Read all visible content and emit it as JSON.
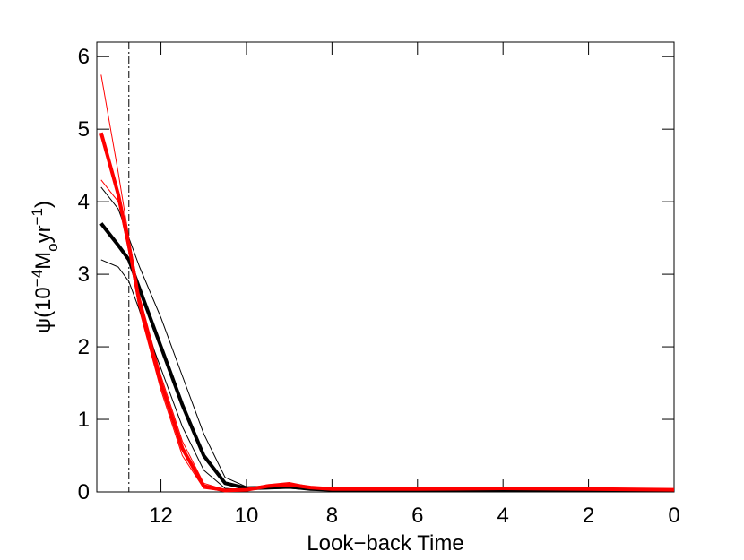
{
  "chart_data": {
    "type": "line",
    "xlabel": "Look−back Time",
    "ylabel": [
      "ψ(10",
      "−4",
      "M",
      "o",
      "yr",
      "−1",
      ")"
    ],
    "x": [
      13.4,
      13.0,
      12.75,
      12.5,
      12.0,
      11.5,
      11.0,
      10.5,
      10.0,
      9.5,
      9.0,
      8.5,
      8.0,
      6.0,
      4.0,
      2.0,
      0.0
    ],
    "series": [
      {
        "color": "#ff0000",
        "width": 1,
        "values": [
          5.75,
          4.4,
          3.5,
          2.7,
          1.6,
          0.7,
          0.12,
          0.03,
          0.04,
          0.1,
          0.13,
          0.07,
          0.05,
          0.05,
          0.06,
          0.05,
          0.04
        ]
      },
      {
        "color": "#ff0000",
        "width": 1,
        "values": [
          4.3,
          4.0,
          3.3,
          2.5,
          1.4,
          0.5,
          0.05,
          0.01,
          0.02,
          0.06,
          0.08,
          0.04,
          0.03,
          0.03,
          0.04,
          0.03,
          0.02
        ]
      },
      {
        "color": "#000000",
        "width": 1,
        "values": [
          4.2,
          3.9,
          3.5,
          3.1,
          2.4,
          1.6,
          0.8,
          0.2,
          0.07,
          0.08,
          0.1,
          0.05,
          0.04,
          0.04,
          0.04,
          0.04,
          0.04
        ]
      },
      {
        "color": "#000000",
        "width": 1,
        "values": [
          3.2,
          3.1,
          2.9,
          2.5,
          1.7,
          0.9,
          0.3,
          0.05,
          0.03,
          0.04,
          0.05,
          0.03,
          0.02,
          0.02,
          0.02,
          0.02,
          0.02
        ]
      },
      {
        "color": "#000000",
        "width": 4,
        "values": [
          3.7,
          3.4,
          3.2,
          2.8,
          2.0,
          1.2,
          0.5,
          0.12,
          0.05,
          0.06,
          0.07,
          0.04,
          0.03,
          0.03,
          0.03,
          0.03,
          0.02
        ]
      },
      {
        "color": "#ff0000",
        "width": 4,
        "values": [
          4.95,
          4.1,
          3.4,
          2.6,
          1.5,
          0.6,
          0.08,
          0.02,
          0.03,
          0.08,
          0.1,
          0.06,
          0.04,
          0.04,
          0.05,
          0.04,
          0.03
        ]
      }
    ],
    "vline": 12.75,
    "xlim": [
      13.5,
      0
    ],
    "xticks": [
      12,
      10,
      8,
      6,
      4,
      2,
      0
    ],
    "ylim": [
      0,
      6.2
    ],
    "yticks": [
      0,
      1,
      2,
      3,
      4,
      5,
      6
    ]
  }
}
